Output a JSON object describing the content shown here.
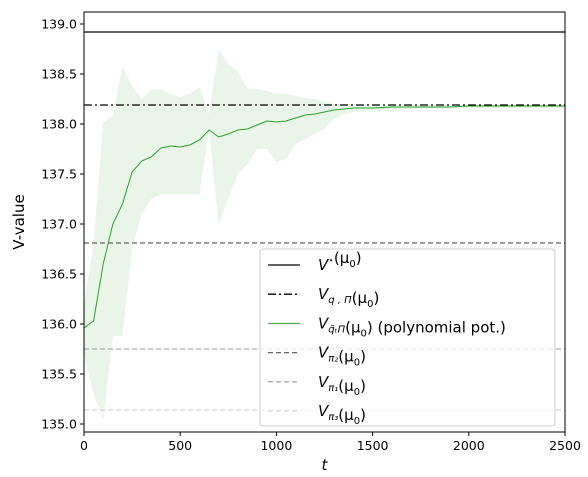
{
  "chart_data": {
    "type": "line",
    "xlabel": "t",
    "ylabel": "V-value",
    "xlim": [
      0,
      2500
    ],
    "ylim": [
      134.92,
      139.12
    ],
    "xticks": [
      0,
      500,
      1000,
      1500,
      2000,
      2500
    ],
    "xtick_labels": [
      "0",
      "500",
      "1000",
      "1500",
      "2000",
      "2500"
    ],
    "yticks": [
      135.0,
      135.5,
      136.0,
      136.5,
      137.0,
      137.5,
      138.0,
      138.5,
      139.0
    ],
    "ytick_labels": [
      "135.0",
      "135.5",
      "136.0",
      "136.5",
      "137.0",
      "137.5",
      "138.0",
      "138.5",
      "139.0"
    ],
    "grid": false,
    "legend_position": "lower-right",
    "reference_lines": [
      {
        "value": 138.92,
        "color": "#000000",
        "dash": "solid"
      },
      {
        "value": 138.19,
        "color": "#000000",
        "dash": "dashdot"
      },
      {
        "value": 136.81,
        "color": "#666666",
        "dash": "dashed"
      },
      {
        "value": 135.75,
        "color": "#aaaaaa",
        "dash": "dashed"
      },
      {
        "value": 135.14,
        "color": "#d3d3d3",
        "dash": "dashed"
      }
    ],
    "series": [
      {
        "color": "#2ca02c",
        "x": [
          0,
          50,
          100,
          150,
          200,
          250,
          300,
          350,
          400,
          450,
          500,
          550,
          600,
          650,
          700,
          750,
          800,
          850,
          900,
          950,
          1000,
          1050,
          1100,
          1150,
          1200,
          1250,
          1300,
          1350,
          1400,
          1500,
          1600,
          1700,
          1800,
          1900,
          2000,
          2100,
          2200,
          2300,
          2400,
          2500
        ],
        "y": [
          135.96,
          136.03,
          136.6,
          137.0,
          137.2,
          137.52,
          137.63,
          137.67,
          137.76,
          137.78,
          137.77,
          137.79,
          137.84,
          137.94,
          137.87,
          137.9,
          137.94,
          137.95,
          137.99,
          138.03,
          138.02,
          138.03,
          138.06,
          138.09,
          138.1,
          138.12,
          138.14,
          138.15,
          138.16,
          138.16,
          138.17,
          138.17,
          138.17,
          138.17,
          138.18,
          138.18,
          138.18,
          138.18,
          138.18,
          138.18
        ],
        "lower": [
          135.7,
          135.3,
          135.05,
          135.88,
          135.88,
          136.75,
          137.1,
          137.25,
          137.3,
          137.3,
          137.3,
          137.3,
          137.3,
          137.93,
          137.0,
          137.25,
          137.5,
          137.6,
          137.75,
          137.75,
          137.62,
          137.65,
          137.8,
          137.85,
          137.9,
          137.95,
          138.05,
          138.1,
          138.12,
          138.13,
          138.14,
          138.15,
          138.15,
          138.15,
          138.16,
          138.16,
          138.16,
          138.16,
          138.16,
          138.16
        ],
        "upper": [
          136.2,
          136.8,
          138.02,
          138.08,
          138.57,
          138.38,
          138.25,
          138.34,
          138.35,
          138.3,
          138.27,
          138.3,
          138.37,
          138.1,
          138.74,
          138.6,
          138.52,
          138.35,
          138.35,
          138.33,
          138.3,
          138.3,
          138.28,
          138.26,
          138.25,
          138.22,
          138.2,
          138.2,
          138.19,
          138.19,
          138.19,
          138.19,
          138.19,
          138.19,
          138.19,
          138.19,
          138.19,
          138.19,
          138.19,
          138.19
        ]
      }
    ]
  },
  "legend": {
    "items": [
      {
        "main": "V",
        "sup": "⋆",
        "sub": "",
        "suffix": "(μ",
        "suffix_sub": "0",
        "tail": ")"
      },
      {
        "main": "V",
        "sup": "",
        "sub": "q , Π",
        "suffix": "(μ",
        "suffix_sub": "0",
        "tail": ")"
      },
      {
        "main": "V",
        "sup": "",
        "sub": "q̃ₜΠ",
        "suffix": "(μ",
        "suffix_sub": "0",
        "tail": ") (polynomial pot.)"
      },
      {
        "main": "V",
        "sup": "",
        "sub": "π₂",
        "suffix": "(μ",
        "suffix_sub": "0",
        "tail": ")"
      },
      {
        "main": "V",
        "sup": "",
        "sub": "π₁",
        "suffix": "(μ",
        "suffix_sub": "0",
        "tail": ")"
      },
      {
        "main": "V",
        "sup": "",
        "sub": "π₃",
        "suffix": "(μ",
        "suffix_sub": "0",
        "tail": ")"
      }
    ]
  }
}
